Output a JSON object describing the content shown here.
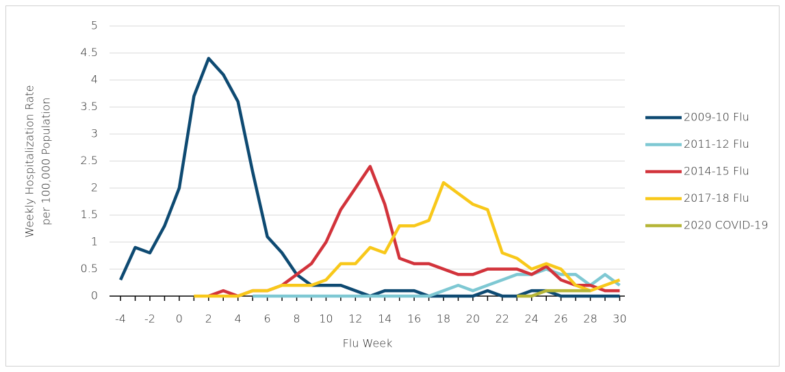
{
  "chart_data": {
    "type": "line",
    "x_label": "Flu Week",
    "y_label": [
      "Weekly Hospitalization Rate",
      "per 100,000 Population"
    ],
    "x": [
      -4,
      -3,
      -2,
      -1,
      0,
      1,
      2,
      3,
      4,
      5,
      6,
      7,
      8,
      9,
      10,
      11,
      12,
      13,
      14,
      15,
      16,
      17,
      18,
      19,
      20,
      21,
      22,
      23,
      24,
      25,
      26,
      27,
      28,
      29,
      30
    ],
    "xlim": [
      -4.75,
      30.35
    ],
    "xticks": [
      -4,
      -2,
      0,
      2,
      4,
      6,
      8,
      10,
      12,
      14,
      16,
      18,
      20,
      22,
      24,
      26,
      28,
      30
    ],
    "ylim": [
      0,
      5
    ],
    "yticks": [
      0,
      0.5,
      1,
      1.5,
      2,
      2.5,
      3,
      3.5,
      4,
      4.5,
      5
    ],
    "grid": true,
    "legend": "right",
    "series": [
      {
        "name": "2009-10 Flu",
        "color": "#0e4a72",
        "values": [
          0.3,
          0.9,
          0.8,
          1.3,
          2.0,
          3.7,
          4.4,
          4.1,
          3.6,
          2.3,
          1.1,
          0.8,
          0.4,
          0.2,
          0.2,
          0.2,
          0.1,
          0,
          0.1,
          0.1,
          0.1,
          0,
          0,
          0,
          0,
          0.1,
          0,
          0,
          0.1,
          0.1,
          0,
          0,
          0,
          0,
          0
        ]
      },
      {
        "name": "2011-12 Flu",
        "color": "#7ec8d3",
        "values": [
          null,
          null,
          null,
          null,
          null,
          null,
          null,
          null,
          null,
          0,
          0,
          0,
          0,
          0,
          0,
          0,
          0,
          0,
          0,
          0,
          0,
          0,
          0.1,
          0.2,
          0.1,
          0.2,
          0.3,
          0.4,
          0.4,
          0.5,
          0.4,
          0.4,
          0.2,
          0.4,
          0.2
        ]
      },
      {
        "name": "2014-15 Flu",
        "color": "#d2333b",
        "values": [
          null,
          null,
          null,
          null,
          null,
          null,
          0,
          0.1,
          0,
          0.1,
          0.1,
          0.2,
          0.4,
          0.6,
          1.0,
          1.6,
          2.0,
          2.4,
          1.7,
          0.7,
          0.6,
          0.6,
          0.5,
          0.4,
          0.4,
          0.5,
          0.5,
          0.5,
          0.4,
          0.55,
          0.3,
          0.2,
          0.2,
          0.1,
          0.1
        ]
      },
      {
        "name": "2017-18 Flu",
        "color": "#f8c81a",
        "values": [
          null,
          null,
          null,
          null,
          null,
          0,
          0,
          0,
          0,
          0.1,
          0.1,
          0.2,
          0.2,
          0.2,
          0.3,
          0.6,
          0.6,
          0.9,
          0.8,
          1.3,
          1.3,
          1.4,
          2.1,
          1.9,
          1.7,
          1.6,
          0.8,
          0.7,
          0.5,
          0.6,
          0.5,
          0.2,
          0.1,
          0.2,
          0.3
        ]
      },
      {
        "name": "2020 COVID-19",
        "color": "#b5b537",
        "values": [
          null,
          null,
          null,
          null,
          null,
          null,
          null,
          null,
          null,
          null,
          null,
          null,
          null,
          null,
          null,
          null,
          null,
          null,
          null,
          null,
          null,
          null,
          null,
          null,
          null,
          null,
          null,
          0,
          0,
          0.1,
          0.1,
          0.1,
          0.1,
          null,
          null
        ]
      }
    ]
  }
}
